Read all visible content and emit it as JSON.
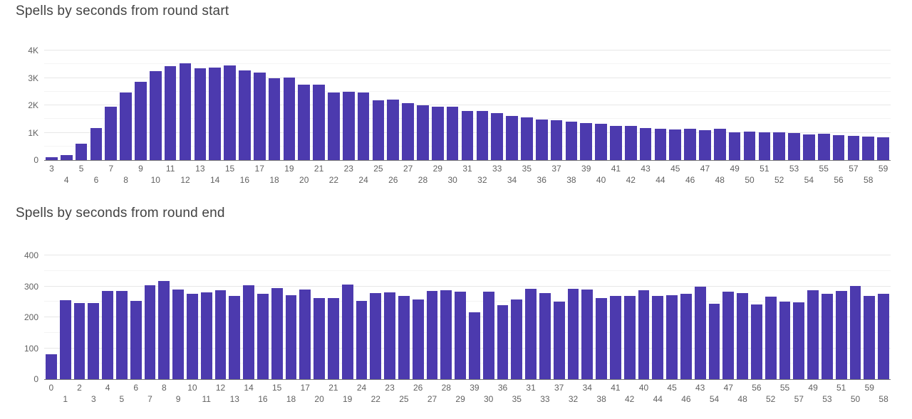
{
  "colors": {
    "bar": "#4C3AAE",
    "title": "#424242",
    "tick_label": "#616161",
    "gridline_major": "#e7e7e7",
    "gridline_minor": "#f4f4f4",
    "baseline": "#757575",
    "background": "#ffffff"
  },
  "chart_data": [
    {
      "type": "bar",
      "title": "Spells by seconds from round start",
      "xlabel": "",
      "ylabel": "",
      "legend": "none",
      "grid": true,
      "ylim": [
        0,
        4000
      ],
      "ytick_step": 1000,
      "ytick_minor_step": 500,
      "ytick_labels": [
        "0",
        "1K",
        "2K",
        "3K",
        "4K"
      ],
      "categories": [
        "3",
        "4",
        "5",
        "6",
        "7",
        "8",
        "9",
        "10",
        "11",
        "12",
        "13",
        "14",
        "15",
        "16",
        "17",
        "18",
        "19",
        "20",
        "21",
        "22",
        "23",
        "24",
        "25",
        "26",
        "27",
        "28",
        "29",
        "30",
        "31",
        "32",
        "33",
        "34",
        "35",
        "36",
        "37",
        "38",
        "39",
        "40",
        "41",
        "42",
        "43",
        "44",
        "45",
        "46",
        "47",
        "48",
        "49",
        "50",
        "51",
        "52",
        "53",
        "54",
        "55",
        "56",
        "57",
        "58",
        "59"
      ],
      "values": [
        100,
        185,
        600,
        1180,
        1950,
        2480,
        2870,
        3260,
        3430,
        3540,
        3350,
        3390,
        3460,
        3280,
        3200,
        3000,
        3020,
        2760,
        2750,
        2480,
        2500,
        2470,
        2180,
        2210,
        2080,
        2000,
        1950,
        1960,
        1800,
        1780,
        1710,
        1610,
        1560,
        1490,
        1450,
        1410,
        1360,
        1330,
        1250,
        1240,
        1170,
        1150,
        1120,
        1140,
        1090,
        1140,
        1020,
        1050,
        1010,
        1010,
        990,
        940,
        950,
        900,
        890,
        860,
        840
      ]
    },
    {
      "type": "bar",
      "title": "Spells by seconds from round end",
      "xlabel": "",
      "ylabel": "",
      "legend": "none",
      "grid": true,
      "ylim": [
        0,
        400
      ],
      "ytick_step": 100,
      "ytick_minor_step": 50,
      "ytick_labels": [
        "0",
        "100",
        "200",
        "300",
        "400"
      ],
      "categories": [
        "0",
        "1",
        "2",
        "3",
        "4",
        "5",
        "6",
        "7",
        "8",
        "9",
        "10",
        "11",
        "12",
        "13",
        "14",
        "16",
        "15",
        "18",
        "17",
        "20",
        "21",
        "19",
        "24",
        "22",
        "23",
        "25",
        "26",
        "27",
        "28",
        "29",
        "39",
        "30",
        "36",
        "35",
        "31",
        "33",
        "37",
        "32",
        "34",
        "38",
        "41",
        "42",
        "40",
        "44",
        "45",
        "46",
        "43",
        "54",
        "47",
        "48",
        "56",
        "52",
        "55",
        "57",
        "49",
        "53",
        "51",
        "50",
        "59",
        "58"
      ],
      "values": [
        80,
        255,
        247,
        246,
        284,
        286,
        252,
        303,
        318,
        289,
        276,
        280,
        288,
        268,
        303,
        277,
        295,
        272,
        290,
        263,
        262,
        305,
        253,
        278,
        280,
        268,
        258,
        286,
        288,
        283,
        216,
        283,
        240,
        258,
        293,
        279,
        251,
        292,
        289,
        261,
        268,
        268,
        287,
        270,
        271,
        275,
        299,
        244,
        283,
        278,
        241,
        266,
        251,
        248,
        287,
        275,
        285,
        301,
        268,
        275
      ]
    }
  ]
}
